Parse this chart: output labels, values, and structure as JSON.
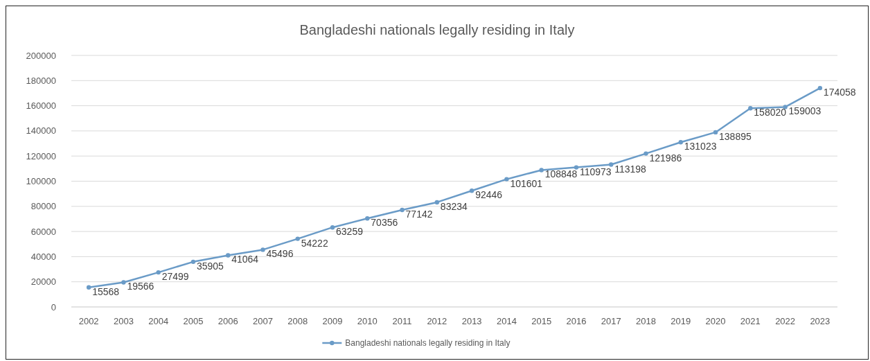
{
  "chart_data": {
    "type": "line",
    "title": "Bangladeshi nationals legally residing in Italy",
    "categories": [
      "2002",
      "2003",
      "2004",
      "2005",
      "2006",
      "2007",
      "2008",
      "2009",
      "2010",
      "2011",
      "2012",
      "2013",
      "2014",
      "2015",
      "2016",
      "2017",
      "2018",
      "2019",
      "2020",
      "2021",
      "2022",
      "2023"
    ],
    "series": [
      {
        "name": "Bangladeshi nationals legally residing in Italy",
        "color": "#6a9bc7",
        "values": [
          15568,
          19566,
          27499,
          35905,
          41064,
          45496,
          54222,
          63259,
          70356,
          77142,
          83234,
          92446,
          101601,
          108848,
          110973,
          113198,
          121986,
          131023,
          138895,
          158020,
          159003,
          174058
        ]
      }
    ],
    "ylim": [
      0,
      200000
    ],
    "yticks": [
      0,
      20000,
      40000,
      60000,
      80000,
      100000,
      120000,
      140000,
      160000,
      180000,
      200000
    ],
    "grid": "y",
    "legend": "bottom",
    "marker": "circle",
    "line_style": "solid",
    "data_labels": true
  }
}
